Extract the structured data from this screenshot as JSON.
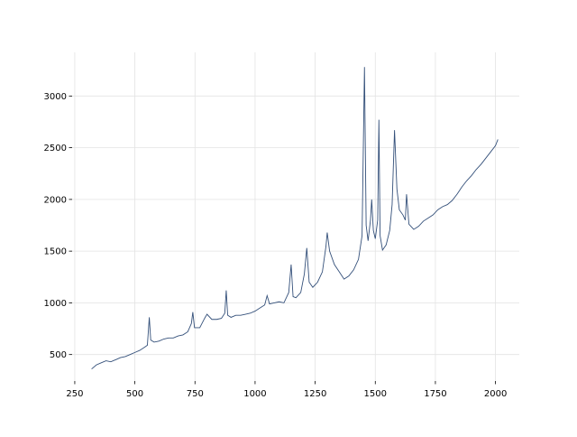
{
  "chart_data": {
    "type": "line",
    "x": [
      320,
      340,
      360,
      380,
      400,
      420,
      440,
      460,
      480,
      500,
      520,
      540,
      552,
      560,
      566,
      580,
      600,
      620,
      640,
      660,
      680,
      700,
      720,
      735,
      741,
      748,
      770,
      790,
      800,
      820,
      840,
      860,
      874,
      880,
      886,
      900,
      920,
      940,
      960,
      980,
      1000,
      1020,
      1040,
      1050,
      1060,
      1080,
      1100,
      1120,
      1140,
      1150,
      1158,
      1170,
      1190,
      1205,
      1215,
      1225,
      1240,
      1260,
      1280,
      1295,
      1300,
      1310,
      1330,
      1350,
      1370,
      1390,
      1410,
      1430,
      1445,
      1455,
      1462,
      1470,
      1480,
      1485,
      1492,
      1500,
      1510,
      1515,
      1520,
      1530,
      1545,
      1560,
      1570,
      1580,
      1590,
      1600,
      1615,
      1625,
      1630,
      1640,
      1660,
      1680,
      1700,
      1720,
      1740,
      1760,
      1780,
      1800,
      1820,
      1840,
      1860,
      1880,
      1900,
      1920,
      1940,
      1960,
      1980,
      2000,
      2010
    ],
    "series": [
      {
        "color": "#34507a",
        "values": [
          360,
          400,
          420,
          440,
          430,
          450,
          470,
          480,
          500,
          520,
          540,
          570,
          590,
          860,
          640,
          620,
          630,
          650,
          660,
          660,
          680,
          690,
          720,
          800,
          910,
          760,
          760,
          850,
          890,
          840,
          840,
          850,
          900,
          1120,
          880,
          860,
          880,
          880,
          890,
          900,
          920,
          950,
          980,
          1070,
          990,
          1000,
          1010,
          1000,
          1100,
          1370,
          1060,
          1050,
          1100,
          1280,
          1530,
          1200,
          1150,
          1200,
          1300,
          1550,
          1680,
          1500,
          1370,
          1300,
          1230,
          1260,
          1320,
          1420,
          1650,
          3280,
          1750,
          1600,
          1800,
          2000,
          1700,
          1620,
          1800,
          2770,
          1650,
          1510,
          1560,
          1700,
          1950,
          2670,
          2100,
          1900,
          1850,
          1800,
          2050,
          1760,
          1710,
          1740,
          1790,
          1820,
          1850,
          1900,
          1930,
          1950,
          1990,
          2050,
          2120,
          2180,
          2230,
          2290,
          2340,
          2400,
          2460,
          2520,
          2580
        ]
      }
    ],
    "xlim": [
      239,
      2099
    ],
    "ylim": [
      244,
      3422
    ],
    "xticks": [
      250,
      500,
      750,
      1000,
      1250,
      1500,
      1750,
      2000
    ],
    "yticks": [
      500,
      1000,
      1500,
      2000,
      2500,
      3000
    ],
    "grid": true
  }
}
